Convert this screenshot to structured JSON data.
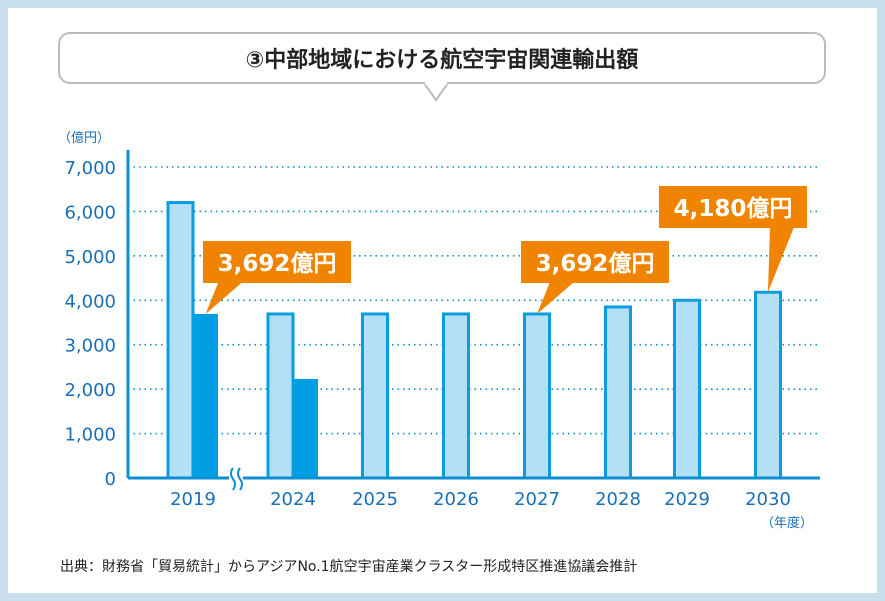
{
  "chart_data": {
    "type": "bar",
    "title": "③中部地域における航空宇宙関連輸出額",
    "ylabel": "（億円）",
    "xlabel": "（年度）",
    "ylim": [
      0,
      7000
    ],
    "yticks": [
      "0",
      "1,000",
      "2,000",
      "3,000",
      "4,000",
      "5,000",
      "6,000",
      "7,000"
    ],
    "grid": true,
    "categories": [
      "2019",
      "2024",
      "2025",
      "2026",
      "2027",
      "2028",
      "2029",
      "2030"
    ],
    "series": [
      {
        "values": [
          6200,
          3692,
          3692,
          3692,
          3692,
          3850,
          4000,
          4180
        ]
      },
      {
        "values": [
          3692,
          2230,
          null,
          null,
          null,
          null,
          null,
          null
        ]
      }
    ],
    "annotations": [
      {
        "text": "3,692億円",
        "category": "2019",
        "series": 1
      },
      {
        "text": "3,692億円",
        "category": "2027",
        "series": 0
      },
      {
        "text": "4,180億円",
        "category": "2030",
        "series": 0
      }
    ],
    "axis_break": "2019-2024",
    "colors": {
      "series0_fill": "#b3e0f6",
      "series0_stroke": "#0a9ee0",
      "series1": "#009fe3",
      "axis": "#0a8fd0",
      "callout": "#f08300",
      "tick_text": "#1a6fb5"
    }
  },
  "source": "出典：財務省「貿易統計」からアジアNo.1航空宇宙産業クラスター形成特区推進協議会推計"
}
